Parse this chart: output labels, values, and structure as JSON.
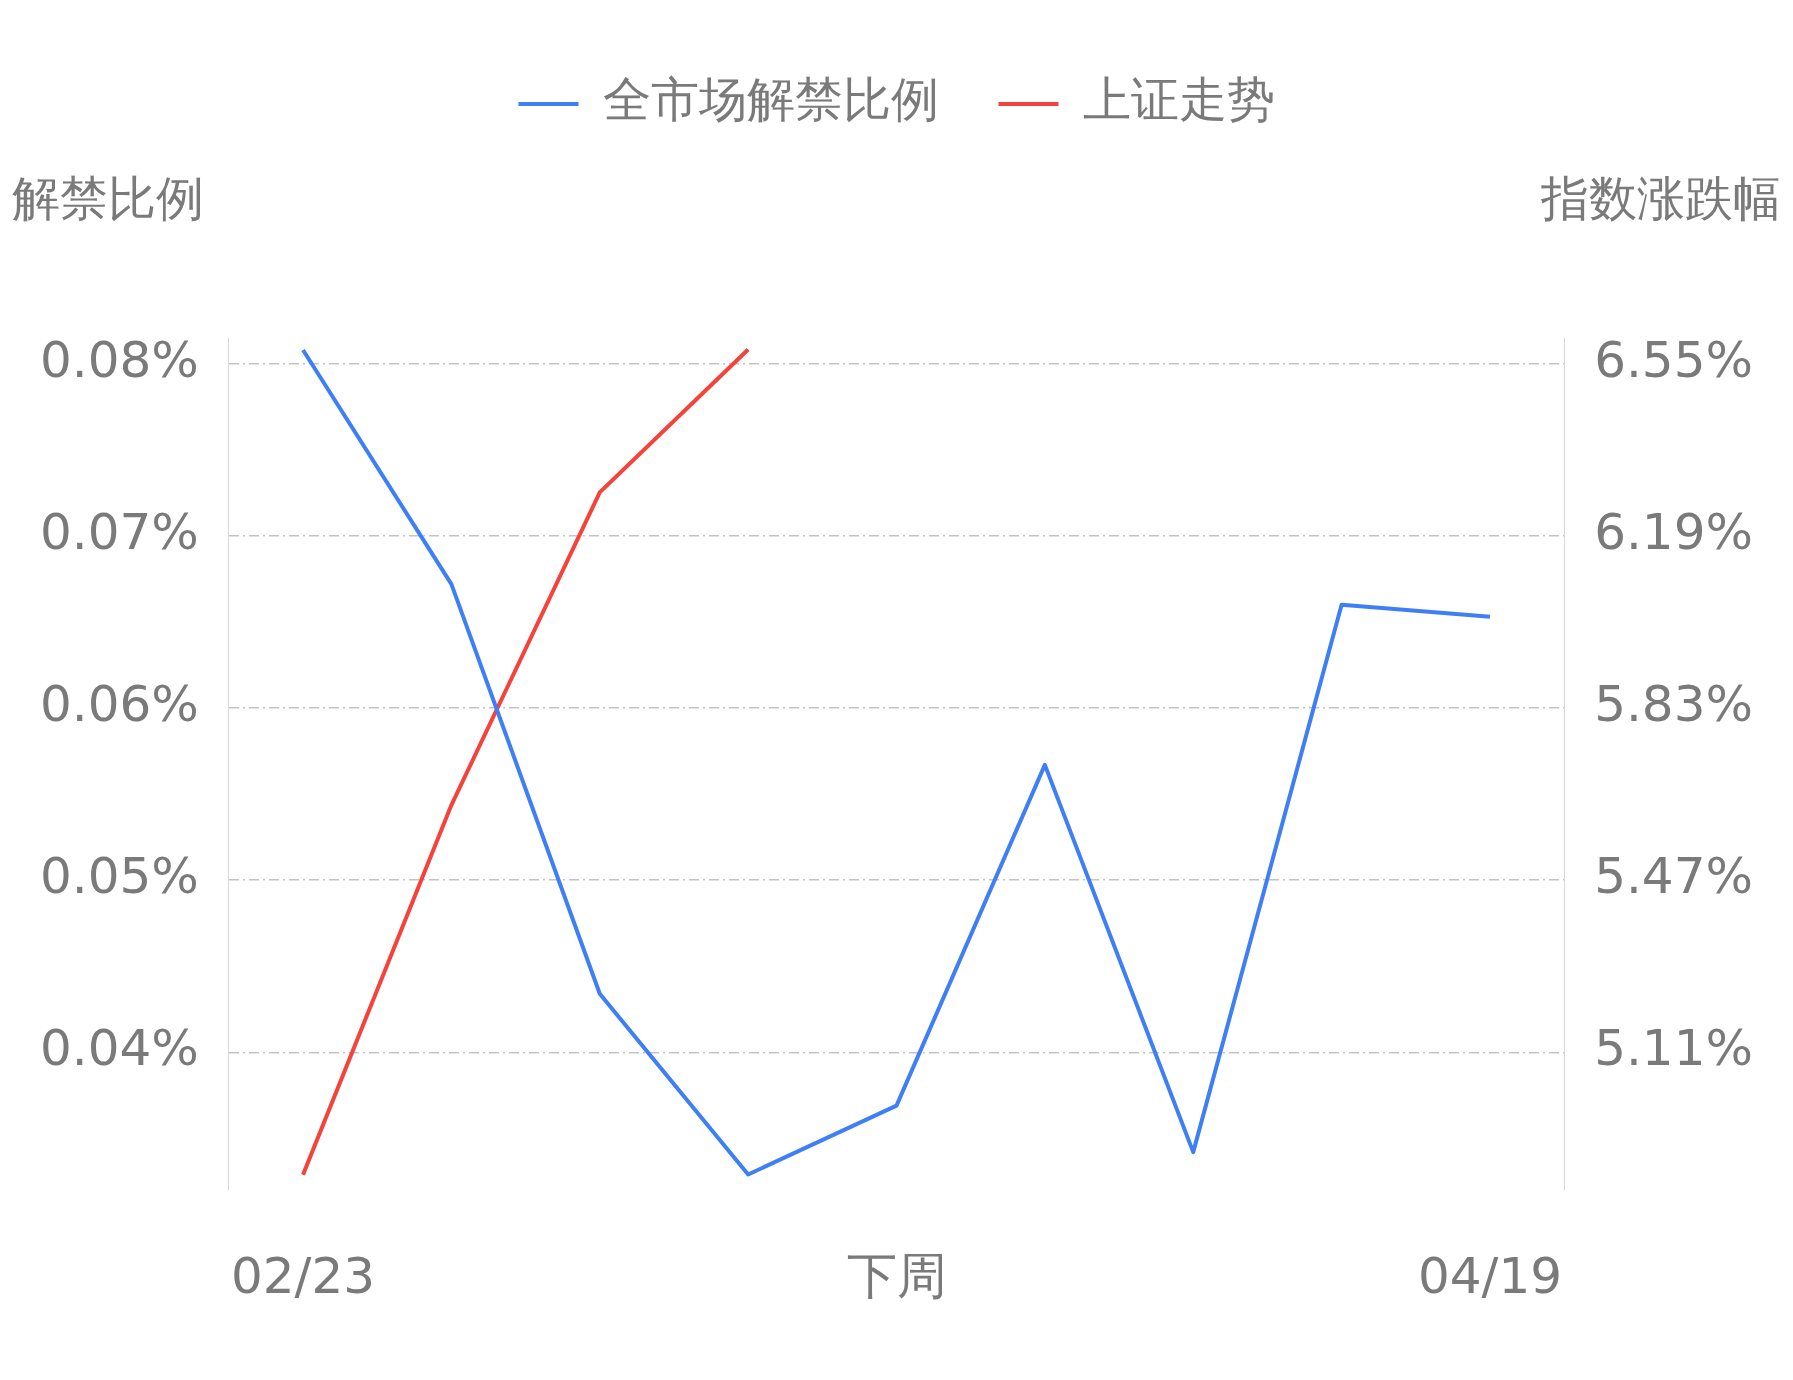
{
  "chart_data": {
    "type": "line",
    "categories": [
      "02/23",
      null,
      null,
      null,
      "下周",
      null,
      null,
      null,
      "04/19"
    ],
    "series": [
      {
        "name": "全市场解禁比例",
        "color": "#3f7ff5",
        "values": [
          0.0808,
          0.0672,
          0.0434,
          0.0329,
          0.0369,
          0.0567,
          0.0342,
          0.066,
          0.0653
        ]
      },
      {
        "name": "上证走势",
        "color": "#f5423b",
        "axis": "y2",
        "values": [
          4.854,
          5.627,
          6.281,
          6.58,
          null,
          null,
          null,
          null,
          null
        ]
      }
    ],
    "ylabel": "解禁比例",
    "y2label": "指数涨跌幅",
    "ylim": [
      0.032,
      0.0815
    ],
    "yticks": [
      {
        "value": 0.04,
        "label": "0.04%"
      },
      {
        "value": 0.05,
        "label": "0.05%"
      },
      {
        "value": 0.06,
        "label": "0.06%"
      },
      {
        "value": 0.07,
        "label": "0.07%"
      },
      {
        "value": 0.08,
        "label": "0.08%"
      }
    ],
    "y2lim": [
      4.822,
      6.604
    ],
    "y2ticks": [
      {
        "value": 5.11,
        "label": "5.11%"
      },
      {
        "value": 5.47,
        "label": "5.47%"
      },
      {
        "value": 5.83,
        "label": "5.83%"
      },
      {
        "value": 6.19,
        "label": "6.19%"
      },
      {
        "value": 6.55,
        "label": "6.55%"
      }
    ],
    "grid": "y",
    "legend": "top",
    "marker": "none"
  }
}
